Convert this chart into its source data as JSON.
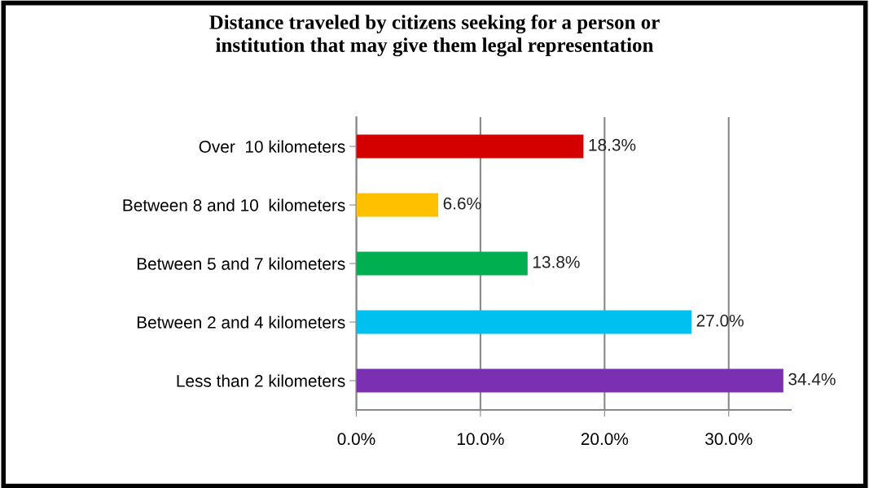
{
  "chart_data": {
    "type": "bar",
    "orientation": "horizontal",
    "title": "Distance traveled by citizens seeking for a person or\ninstitution that may give them legal representation",
    "categories": [
      "Over  10 kilometers",
      "Between 8 and 10  kilometers",
      "Between 5 and 7 kilometers",
      "Between 2 and 4 kilometers",
      "Less than 2 kilometers"
    ],
    "values": [
      18.3,
      6.6,
      13.8,
      27.0,
      34.4
    ],
    "value_labels": [
      "18.3%",
      "6.6%",
      "13.8%",
      "27.0%",
      "34.4%"
    ],
    "colors": [
      "#d40000",
      "#ffc000",
      "#00b050",
      "#00c0f0",
      "#7a30b0"
    ],
    "xlim": [
      0,
      35
    ],
    "xticks": [
      {
        "value": 0,
        "label": "0.0%"
      },
      {
        "value": 10,
        "label": "10.0%"
      },
      {
        "value": 20,
        "label": "20.0%"
      },
      {
        "value": 30,
        "label": "30.0%"
      }
    ],
    "grid": "x"
  }
}
